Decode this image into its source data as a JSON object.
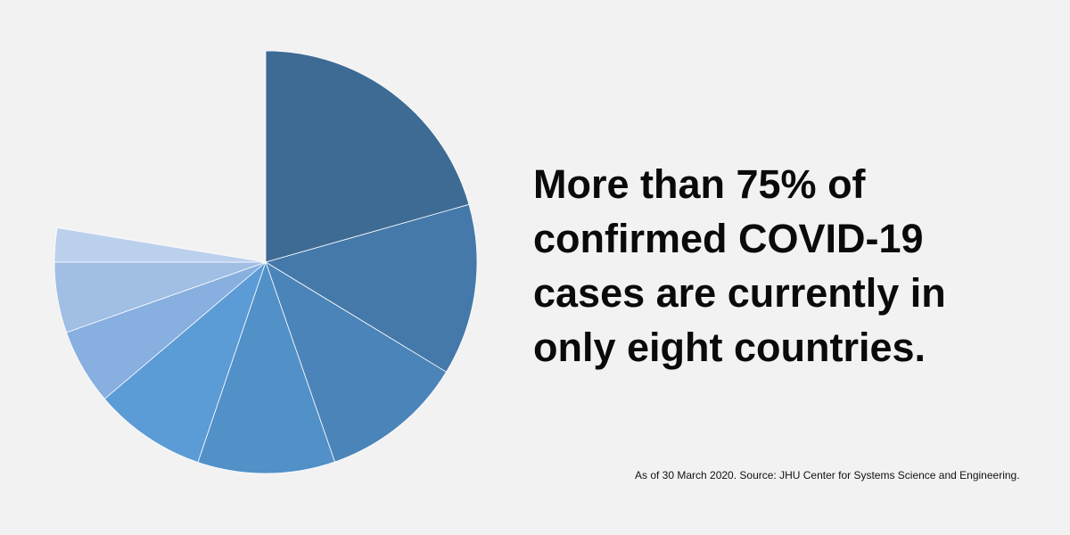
{
  "chart_data": {
    "type": "pie",
    "headline": [
      "More than 75% of",
      "confirmed COVID-19",
      "cases are currently in",
      "only eight countries."
    ],
    "note": "As of 30 March 2020. Source: JHU Center for Systems Science and Engineering.",
    "ylim": [
      0,
      100
    ],
    "values": [
      20.6,
      13.1,
      11.0,
      10.5,
      8.6,
      5.8,
      5.4,
      2.6
    ],
    "colors": [
      "#3e6b94",
      "#4579a9",
      "#4b84b8",
      "#5290c8",
      "#5b9bd6",
      "#87afdf",
      "#a1bee4",
      "#bbd0ec"
    ]
  }
}
